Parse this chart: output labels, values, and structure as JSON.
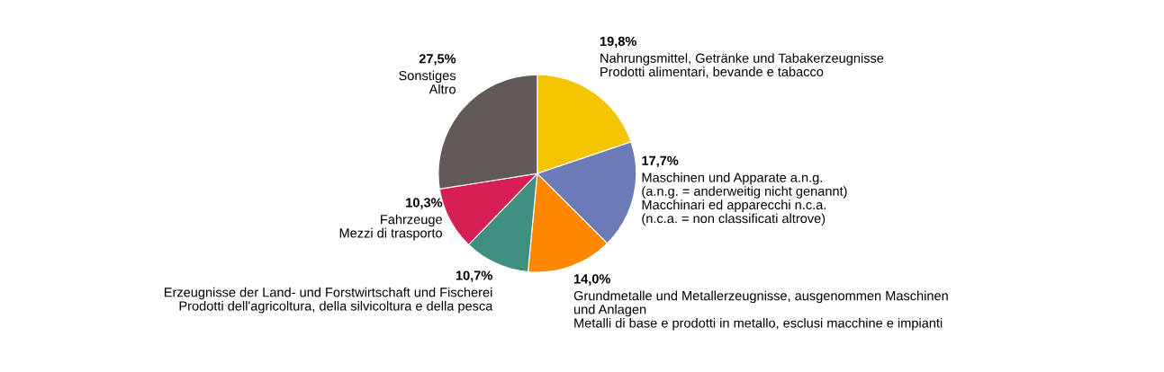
{
  "chart_data": {
    "type": "pie",
    "categories": [
      "Nahrungsmittel, Getränke und Tabakerzeugnisse\nProdotti alimentari, bevande e tabacco",
      "Maschinen und Apparate a.n.g.\n(a.n.g. = anderweitig nicht genannt)\nMacchinari ed apparecchi n.c.a.\n(n.c.a. = non classificati altrove)",
      "Grundmetalle und Metallerzeugnisse, ausgenommen Maschinen\nund Anlagen\nMetalli di base e prodotti in metallo, esclusi macchine e impianti",
      "Erzeugnisse der Land- und Forstwirtschaft und Fischerei\nProdotti dell'agricoltura, della silvicoltura e della pesca",
      "Fahrzeuge\nMezzi di trasporto",
      "Sonstiges\nAltro"
    ],
    "values": [
      19.8,
      17.7,
      14.0,
      10.7,
      10.3,
      27.5
    ],
    "value_labels": [
      "19,8%",
      "17,7%",
      "14,0%",
      "10,7%",
      "10,3%",
      "27,5%"
    ],
    "colors": [
      "#f5c400",
      "#6a7bb6",
      "#ff8800",
      "#3f9080",
      "#d81f55",
      "#625a56"
    ]
  }
}
